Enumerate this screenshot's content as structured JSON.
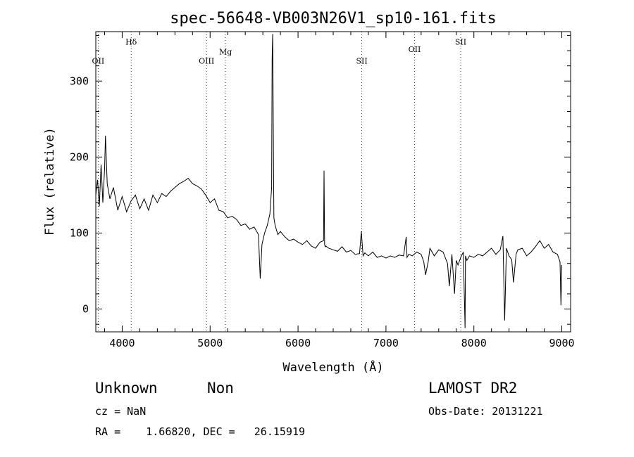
{
  "chart_data": {
    "type": "line",
    "title": "spec-56648-VB003N26V1_sp10-161.fits",
    "xlabel": "Wavelength (Å)",
    "ylabel": "Flux (relative)",
    "xlim": [
      3700,
      9100
    ],
    "ylim": [
      -30,
      365
    ],
    "xticks": [
      4000,
      5000,
      6000,
      7000,
      8000,
      9000
    ],
    "yticks": [
      0,
      100,
      200,
      300
    ],
    "grid": false,
    "lines": [
      {
        "label": "OII",
        "wavelength": 3727,
        "label_y": 323
      },
      {
        "label": "Hδ",
        "wavelength": 4102,
        "label_y": 348
      },
      {
        "label": "OIII",
        "wavelength": 4959,
        "label_y": 323
      },
      {
        "label": "Mg",
        "wavelength": 5175,
        "label_y": 335
      },
      {
        "label": "SII",
        "wavelength": 6725,
        "label_y": 323
      },
      {
        "label": "OII",
        "wavelength": 7325,
        "label_y": 338
      },
      {
        "label": "SII",
        "wavelength": 7850,
        "label_y": 348
      }
    ],
    "series": [
      {
        "x": [
          3700,
          3720,
          3740,
          3760,
          3780,
          3800,
          3810,
          3830,
          3860,
          3900,
          3950,
          4000,
          4050,
          4100,
          4150,
          4200,
          4250,
          4300,
          4350,
          4400,
          4450,
          4500,
          4550,
          4600,
          4650,
          4700,
          4750,
          4800,
          4850,
          4900,
          4950,
          5000,
          5050,
          5100,
          5150,
          5200,
          5250,
          5300,
          5350,
          5400,
          5450,
          5500,
          5550,
          5570,
          5590,
          5620,
          5650,
          5680,
          5700,
          5705,
          5712,
          5718,
          5725,
          5740,
          5770,
          5800,
          5850,
          5900,
          5950,
          6000,
          6050,
          6100,
          6150,
          6200,
          6250,
          6290,
          6296,
          6302,
          6308,
          6314,
          6350,
          6400,
          6450,
          6500,
          6550,
          6600,
          6650,
          6700,
          6720,
          6740,
          6760,
          6800,
          6850,
          6900,
          6950,
          7000,
          7050,
          7100,
          7150,
          7200,
          7230,
          7240,
          7260,
          7300,
          7350,
          7400,
          7430,
          7450,
          7480,
          7500,
          7550,
          7600,
          7650,
          7700,
          7720,
          7750,
          7780,
          7800,
          7820,
          7850,
          7880,
          7900,
          7905,
          7920,
          7950,
          8000,
          8050,
          8100,
          8150,
          8200,
          8250,
          8300,
          8330,
          8350,
          8370,
          8400,
          8430,
          8450,
          8480,
          8500,
          8550,
          8600,
          8650,
          8700,
          8750,
          8800,
          8850,
          8900,
          8950,
          8980,
          8990,
          9000
        ],
        "y": [
          150,
          170,
          135,
          190,
          140,
          185,
          228,
          165,
          145,
          160,
          130,
          148,
          128,
          142,
          150,
          132,
          145,
          130,
          150,
          140,
          152,
          148,
          155,
          160,
          165,
          168,
          172,
          165,
          162,
          158,
          150,
          140,
          145,
          130,
          128,
          120,
          122,
          118,
          110,
          112,
          105,
          108,
          98,
          40,
          85,
          100,
          110,
          125,
          160,
          330,
          362,
          250,
          120,
          110,
          98,
          102,
          95,
          90,
          92,
          88,
          85,
          90,
          83,
          80,
          88,
          90,
          182,
          85,
          82,
          83,
          80,
          78,
          76,
          82,
          75,
          77,
          72,
          73,
          102,
          70,
          74,
          70,
          75,
          68,
          70,
          67,
          70,
          68,
          71,
          70,
          95,
          68,
          72,
          70,
          75,
          72,
          62,
          45,
          62,
          80,
          70,
          78,
          75,
          60,
          30,
          72,
          20,
          64,
          58,
          68,
          75,
          -25,
          70,
          64,
          70,
          68,
          72,
          70,
          75,
          80,
          72,
          78,
          96,
          -15,
          80,
          70,
          65,
          35,
          72,
          78,
          80,
          70,
          75,
          82,
          90,
          80,
          85,
          75,
          72,
          62,
          5,
          58
        ]
      }
    ]
  },
  "info": {
    "object_type": "Unknown",
    "object_class": "Non",
    "survey": "LAMOST DR2",
    "cz": "cz = NaN",
    "obs_date": "Obs-Date: 20131221",
    "coords": "RA =    1.66820, DEC =   26.15919"
  }
}
